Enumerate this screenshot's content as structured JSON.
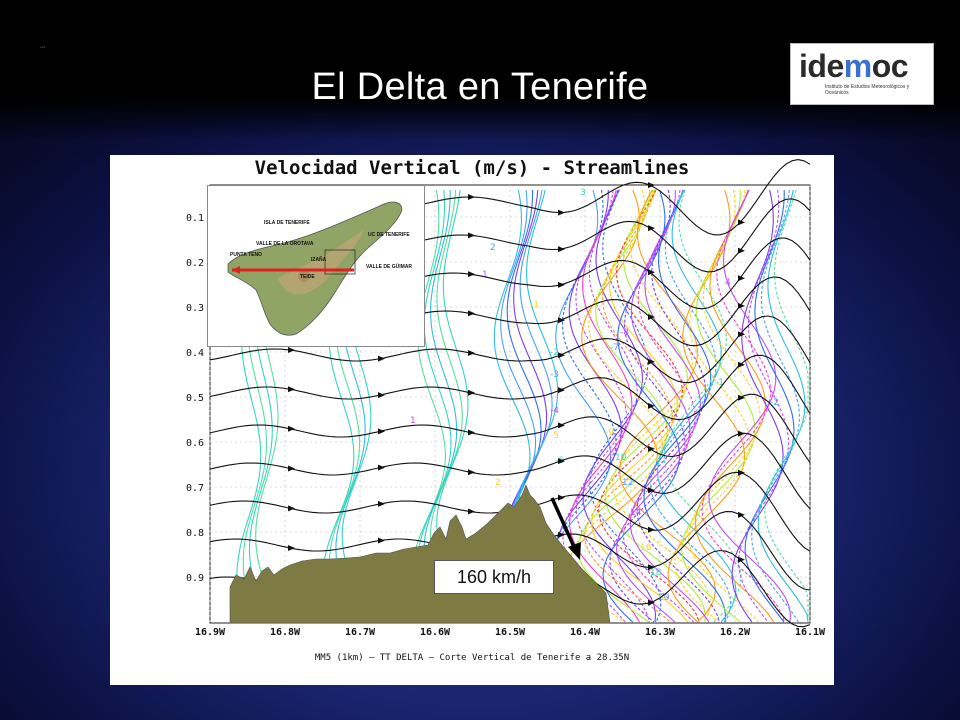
{
  "slide": {
    "title": "El Delta en Tenerife",
    "corner_mark": "•••"
  },
  "logo": {
    "word_prefix": "ide",
    "word_m": "m",
    "word_suffix": "oc",
    "subtitle": "Instituto de Estudios Meteorológicos y Oceánicos"
  },
  "figure": {
    "title": "Velocidad Vertical (m/s) - Streamlines",
    "caption": "MM5 (1km) — TT DELTA — Corte Vertical de Tenerife a 28.35N",
    "y_ticks": [
      "0.1",
      "0.2",
      "0.3",
      "0.4",
      "0.5",
      "0.6",
      "0.7",
      "0.8",
      "0.9"
    ],
    "x_ticks": [
      "16.9W",
      "16.8W",
      "16.7W",
      "16.6W",
      "16.5W",
      "16.4W",
      "16.3W",
      "16.2W",
      "16.1W"
    ],
    "contour_labels": [
      "3",
      "2",
      "1",
      "-1",
      "-2",
      "-3",
      "-4",
      "-5",
      "-6",
      "-7",
      "-8",
      "-9",
      "10",
      "12",
      "14",
      "16",
      "18",
      "20",
      "4",
      "1",
      "-1",
      "-2",
      "1",
      "2"
    ]
  },
  "inset": {
    "labels": [
      "ISLA DE TENERIFE",
      "VALLE DE LA OROTAVA",
      "PUNTA TENO",
      "IZAÑA",
      "TEIDE",
      "UC DE TENERIFE",
      "VALLE DE GÜIMAR"
    ]
  },
  "annotation": {
    "speed": "160 km/h"
  },
  "colors": {
    "terrain": "#7d7a44",
    "section_line": "#e02020"
  }
}
